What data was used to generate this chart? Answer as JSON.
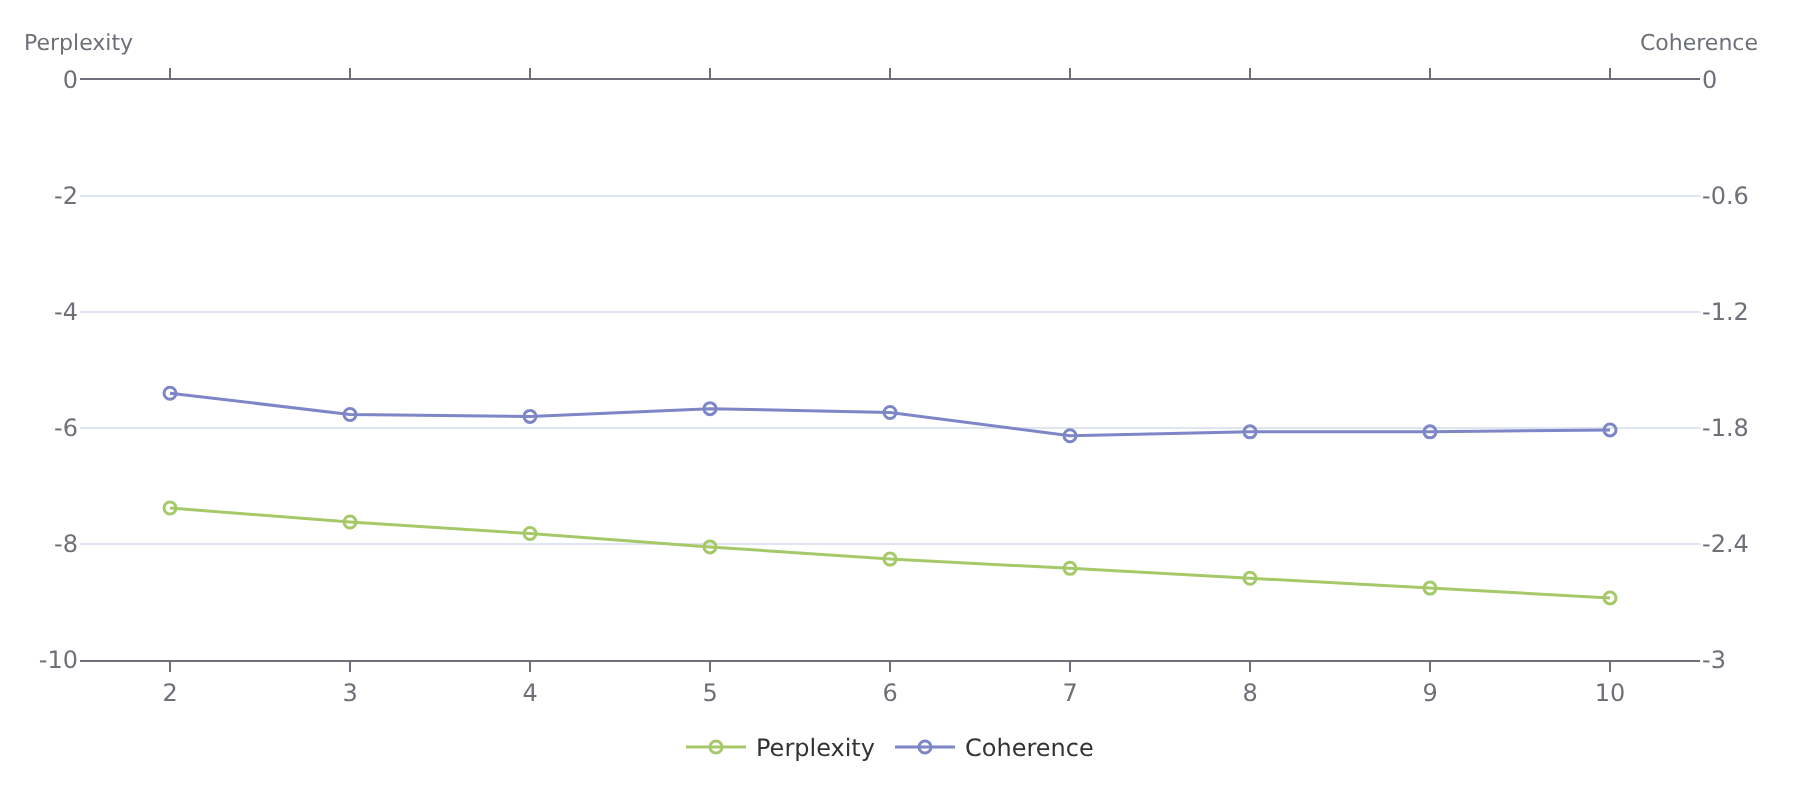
{
  "chart_data": {
    "type": "line",
    "ylabel": "Perplexity",
    "y2label": "Coherence",
    "categories": [
      "2",
      "3",
      "4",
      "5",
      "6",
      "7",
      "8",
      "9",
      "10"
    ],
    "series": [
      {
        "name": "Perplexity",
        "color": "#a5c969",
        "values": [
          -7.38,
          -7.62,
          -7.82,
          -8.05,
          -8.26,
          -8.42,
          -8.59,
          -8.76,
          -8.93
        ]
      },
      {
        "name": "Coherence",
        "color": "#7d86c6",
        "axis": "y2",
        "values": [
          -1.62,
          -1.73,
          -1.74,
          -1.7,
          -1.72,
          -1.84,
          -1.82,
          -1.82,
          -1.81
        ]
      }
    ],
    "ylim": [
      -10,
      0
    ],
    "yticks": [
      -10,
      -8,
      -6,
      -4,
      -2,
      0
    ],
    "y2lim": [
      -3,
      0
    ],
    "y2ticks": [
      -3,
      -2.4,
      -1.8,
      -1.2,
      -0.6,
      0
    ],
    "grid": "y",
    "legend": "bottom",
    "marker": "circle",
    "line_style": "solid"
  }
}
